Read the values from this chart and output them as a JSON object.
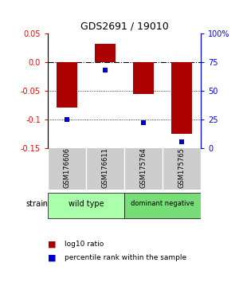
{
  "title": "GDS2691 / 19010",
  "samples": [
    "GSM176606",
    "GSM176611",
    "GSM175764",
    "GSM175765"
  ],
  "log10_ratios": [
    -0.08,
    0.032,
    -0.055,
    -0.125
  ],
  "percentile_ranks": [
    25,
    68,
    22,
    5
  ],
  "ylim": [
    -0.15,
    0.05
  ],
  "yticks_left": [
    -0.15,
    -0.1,
    -0.05,
    0.0,
    0.05
  ],
  "yticks_right": [
    0,
    25,
    50,
    75,
    100
  ],
  "bar_color": "#AA0000",
  "point_color": "#0000CC",
  "bg_color": "#FFFFFF",
  "label_log10": "log10 ratio",
  "label_pct": "percentile rank within the sample",
  "wild_type_color": "#aaffaa",
  "dominant_negative_color": "#77dd77",
  "sample_bg_color": "#cccccc"
}
